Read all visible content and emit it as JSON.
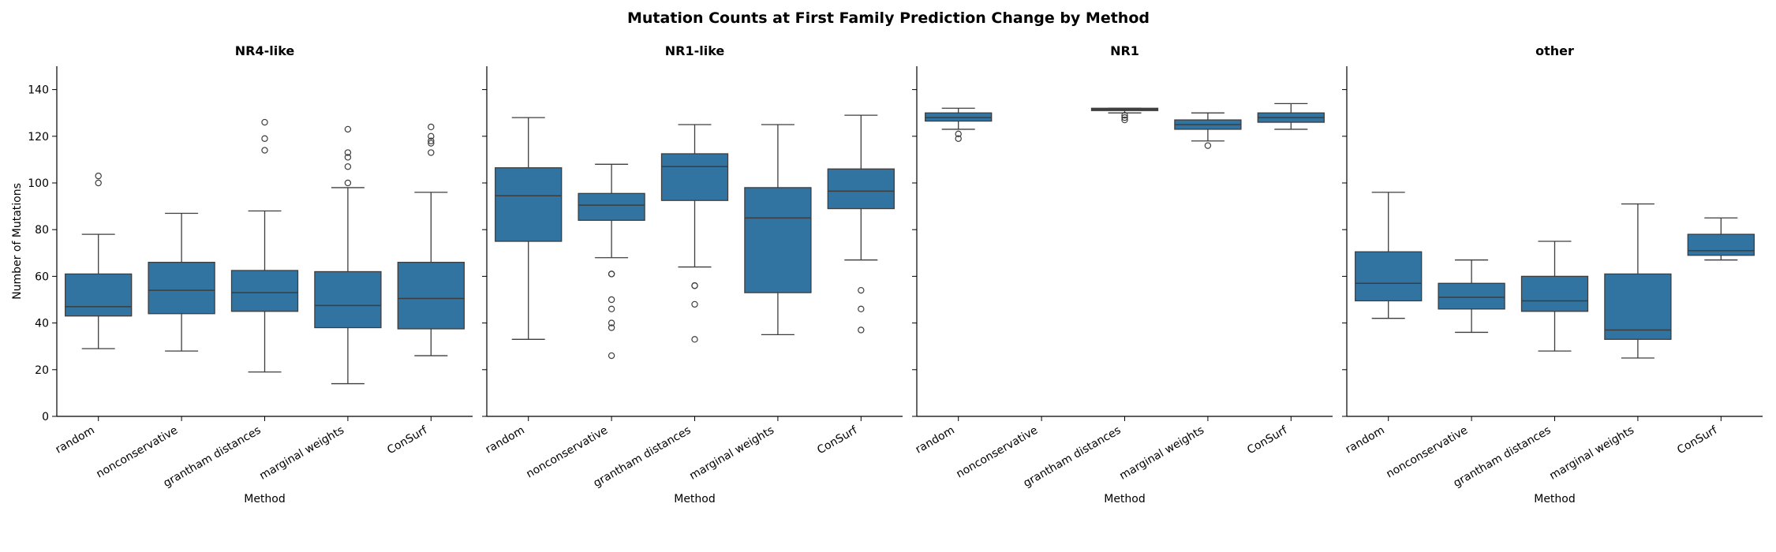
{
  "suptitle": "Mutation Counts at First Family Prediction Change by Method",
  "chart_data": {
    "type": "box",
    "title": "Mutation Counts at First Family Prediction Change by Method",
    "xlabel": "Method",
    "ylabel": "Number of Mutations",
    "ylim": [
      0,
      150
    ],
    "yticks": [
      0,
      20,
      40,
      60,
      80,
      100,
      120,
      140
    ],
    "categories": [
      "random",
      "nonconservative",
      "grantham distances",
      "marginal weights",
      "ConSurf"
    ],
    "box_color": "#3274a1",
    "line_color": "#3d3d3d",
    "panels": [
      {
        "title": "NR4-like",
        "boxes": [
          {
            "method": "random",
            "whisker_low": 29,
            "q1": 43,
            "median": 47,
            "q3": 61,
            "whisker_high": 78,
            "outliers": [
              100,
              103
            ]
          },
          {
            "method": "nonconservative",
            "whisker_low": 28,
            "q1": 44,
            "median": 54,
            "q3": 66,
            "whisker_high": 87,
            "outliers": []
          },
          {
            "method": "grantham distances",
            "whisker_low": 19,
            "q1": 45,
            "median": 53,
            "q3": 62.5,
            "whisker_high": 88,
            "outliers": [
              114,
              119,
              126
            ]
          },
          {
            "method": "marginal weights",
            "whisker_low": 14,
            "q1": 38,
            "median": 47.5,
            "q3": 62,
            "whisker_high": 98,
            "outliers": [
              100,
              107,
              111,
              113,
              123
            ]
          },
          {
            "method": "ConSurf",
            "whisker_low": 26,
            "q1": 37.5,
            "median": 50.5,
            "q3": 66,
            "whisker_high": 96,
            "outliers": [
              113,
              117,
              118,
              120,
              124
            ]
          }
        ]
      },
      {
        "title": "NR1-like",
        "boxes": [
          {
            "method": "random",
            "whisker_low": 33,
            "q1": 75,
            "median": 94.5,
            "q3": 106.5,
            "whisker_high": 128,
            "outliers": []
          },
          {
            "method": "nonconservative",
            "whisker_low": 68,
            "q1": 84,
            "median": 90.5,
            "q3": 95.5,
            "whisker_high": 108,
            "outliers": [
              26,
              38,
              40,
              46,
              50,
              61,
              61
            ]
          },
          {
            "method": "grantham distances",
            "whisker_low": 64,
            "q1": 92.5,
            "median": 107,
            "q3": 112.5,
            "whisker_high": 125,
            "outliers": [
              33,
              48,
              56,
              56
            ]
          },
          {
            "method": "marginal weights",
            "whisker_low": 35,
            "q1": 53,
            "median": 85,
            "q3": 98,
            "whisker_high": 125,
            "outliers": []
          },
          {
            "method": "ConSurf",
            "whisker_low": 67,
            "q1": 89,
            "median": 96.5,
            "q3": 106,
            "whisker_high": 129,
            "outliers": [
              37,
              46,
              54
            ]
          }
        ]
      },
      {
        "title": "NR1",
        "boxes": [
          {
            "method": "random",
            "whisker_low": 123,
            "q1": 126.5,
            "median": 128,
            "q3": 130,
            "whisker_high": 132,
            "outliers": [
              119,
              121
            ]
          },
          {
            "method": "nonconservative",
            "outliers": []
          },
          {
            "method": "grantham distances",
            "whisker_low": 130,
            "q1": 131,
            "median": 131.5,
            "q3": 132,
            "whisker_high": 132,
            "outliers": [
              127,
              128,
              129
            ]
          },
          {
            "method": "marginal weights",
            "whisker_low": 118,
            "q1": 123,
            "median": 125,
            "q3": 127,
            "whisker_high": 130,
            "outliers": [
              116
            ]
          },
          {
            "method": "ConSurf",
            "whisker_low": 123,
            "q1": 126,
            "median": 128,
            "q3": 130,
            "whisker_high": 134,
            "outliers": []
          }
        ]
      },
      {
        "title": "other",
        "boxes": [
          {
            "method": "random",
            "whisker_low": 42,
            "q1": 49.5,
            "median": 57,
            "q3": 70.5,
            "whisker_high": 96,
            "outliers": []
          },
          {
            "method": "nonconservative",
            "whisker_low": 36,
            "q1": 46,
            "median": 51,
            "q3": 57,
            "whisker_high": 67,
            "outliers": []
          },
          {
            "method": "grantham distances",
            "whisker_low": 28,
            "q1": 45,
            "median": 49.5,
            "q3": 60,
            "whisker_high": 75,
            "outliers": []
          },
          {
            "method": "marginal weights",
            "whisker_low": 25,
            "q1": 33,
            "median": 37,
            "q3": 61,
            "whisker_high": 91,
            "outliers": []
          },
          {
            "method": "ConSurf",
            "whisker_low": 67,
            "q1": 69,
            "median": 71,
            "q3": 78,
            "whisker_high": 85,
            "outliers": []
          }
        ]
      }
    ]
  }
}
